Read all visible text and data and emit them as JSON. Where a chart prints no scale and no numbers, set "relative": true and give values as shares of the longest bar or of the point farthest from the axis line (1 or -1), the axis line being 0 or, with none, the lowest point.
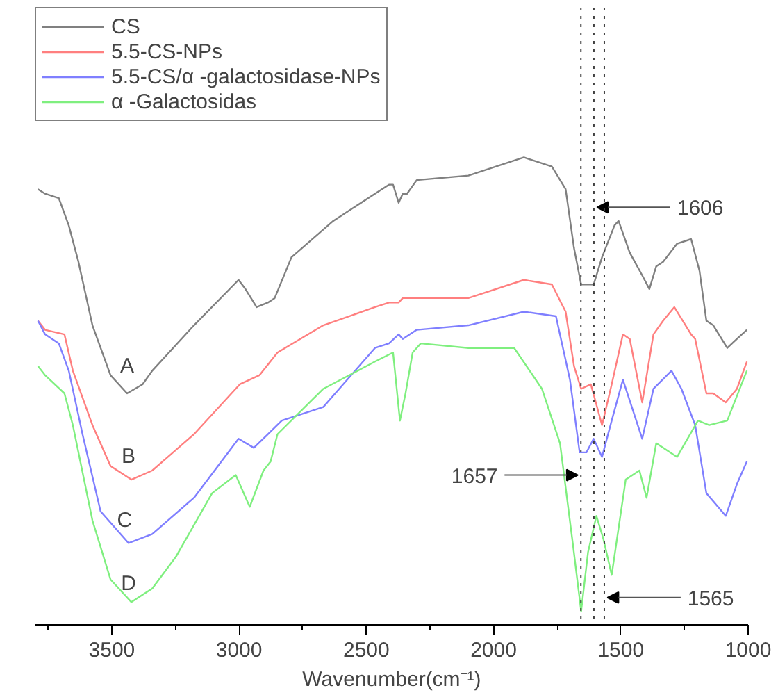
{
  "chart_data": {
    "type": "line",
    "relative": true,
    "xlabel": "Wavenumber(cm⁻¹)",
    "xlim": [
      3800,
      1000
    ],
    "xticks": [
      {
        "value": 3750,
        "label": null
      },
      3500,
      {
        "value": 3250,
        "label": null
      },
      3000,
      {
        "value": 2750,
        "label": null
      },
      2500,
      {
        "value": 2250,
        "label": null
      },
      2000,
      {
        "value": 1750,
        "label": null
      },
      1500,
      {
        "value": 1250,
        "label": null
      },
      1000
    ],
    "grid": false,
    "legend": "top left",
    "line_style": "solid",
    "marker": "none",
    "series": [
      {
        "name": "CS",
        "color": "#808080",
        "x": [
          3790,
          3762,
          3708,
          3669,
          3631,
          3576,
          3505,
          3440,
          3379,
          3341,
          3177,
          3002,
          2975,
          2931,
          2887,
          2860,
          2794,
          2630,
          2466,
          2411,
          2395,
          2373,
          2357,
          2340,
          2302,
          2099,
          1881,
          1771,
          1717,
          1684,
          1656,
          1607,
          1574,
          1525,
          1509,
          1465,
          1416,
          1388,
          1361,
          1334,
          1279,
          1224,
          1191,
          1164,
          1137,
          1082,
          1044,
          1005
        ],
        "values": [
          0.93,
          0.92,
          0.91,
          0.85,
          0.77,
          0.63,
          0.52,
          0.48,
          0.5,
          0.53,
          0.63,
          0.73,
          0.71,
          0.67,
          0.68,
          0.69,
          0.78,
          0.86,
          0.92,
          0.94,
          0.94,
          0.9,
          0.92,
          0.92,
          0.95,
          0.96,
          1.0,
          0.98,
          0.93,
          0.8,
          0.72,
          0.72,
          0.78,
          0.85,
          0.86,
          0.79,
          0.74,
          0.71,
          0.76,
          0.77,
          0.81,
          0.82,
          0.75,
          0.64,
          0.63,
          0.58,
          0.6,
          0.62
        ]
      },
      {
        "name": "5.5-CS-NPs",
        "color": "#ff7f7f",
        "x": [
          3790,
          3762,
          3686,
          3653,
          3576,
          3505,
          3423,
          3341,
          3177,
          2997,
          2920,
          2849,
          2669,
          2466,
          2411,
          2373,
          2357,
          2302,
          2099,
          1881,
          1771,
          1717,
          1684,
          1656,
          1618,
          1574,
          1536,
          1492,
          1465,
          1416,
          1372,
          1334,
          1290,
          1224,
          1208,
          1164,
          1137,
          1088,
          1044,
          1005
        ],
        "values": [
          0.64,
          0.62,
          0.61,
          0.53,
          0.41,
          0.32,
          0.29,
          0.31,
          0.39,
          0.5,
          0.52,
          0.57,
          0.63,
          0.67,
          0.68,
          0.68,
          0.69,
          0.69,
          0.69,
          0.73,
          0.72,
          0.66,
          0.54,
          0.49,
          0.5,
          0.41,
          0.5,
          0.61,
          0.6,
          0.46,
          0.61,
          0.64,
          0.67,
          0.61,
          0.6,
          0.48,
          0.48,
          0.46,
          0.49,
          0.55
        ]
      },
      {
        "name": "5.5-CS/α -galactosidase-NPs",
        "color": "#7f7fff",
        "x": [
          3790,
          3762,
          3708,
          3669,
          3615,
          3544,
          3434,
          3341,
          3177,
          3002,
          2942,
          2887,
          2832,
          2669,
          2466,
          2411,
          2373,
          2357,
          2302,
          2099,
          1881,
          1755,
          1700,
          1662,
          1635,
          1607,
          1574,
          1536,
          1492,
          1416,
          1372,
          1301,
          1262,
          1208,
          1164,
          1088,
          1044,
          1005
        ],
        "values": [
          0.64,
          0.61,
          0.59,
          0.53,
          0.39,
          0.22,
          0.15,
          0.17,
          0.25,
          0.38,
          0.36,
          0.39,
          0.42,
          0.45,
          0.58,
          0.59,
          0.61,
          0.6,
          0.62,
          0.63,
          0.66,
          0.65,
          0.51,
          0.35,
          0.35,
          0.38,
          0.34,
          0.42,
          0.51,
          0.38,
          0.49,
          0.53,
          0.49,
          0.41,
          0.26,
          0.21,
          0.28,
          0.33
        ]
      },
      {
        "name": "α -Galactosidas",
        "color": "#7fef7f",
        "x": [
          3790,
          3762,
          3686,
          3653,
          3576,
          3505,
          3423,
          3341,
          3248,
          3106,
          3013,
          2958,
          2904,
          2876,
          2849,
          2669,
          2466,
          2395,
          2368,
          2346,
          2318,
          2286,
          2099,
          1919,
          1810,
          1739,
          1689,
          1656,
          1629,
          1596,
          1569,
          1536,
          1481,
          1427,
          1399,
          1361,
          1279,
          1197,
          1153,
          1082,
          1005
        ],
        "values": [
          0.54,
          0.52,
          0.48,
          0.41,
          0.2,
          0.07,
          0.02,
          0.05,
          0.12,
          0.26,
          0.3,
          0.23,
          0.31,
          0.33,
          0.39,
          0.49,
          0.55,
          0.57,
          0.42,
          0.48,
          0.57,
          0.59,
          0.58,
          0.58,
          0.49,
          0.37,
          0.15,
          0.0,
          0.13,
          0.21,
          0.16,
          0.08,
          0.29,
          0.31,
          0.25,
          0.37,
          0.34,
          0.42,
          0.41,
          0.42,
          0.53
        ]
      }
    ],
    "ref_lines": [
      {
        "axis": "x",
        "value": 1657,
        "label": "1657",
        "color": "#404040",
        "line_style": "dotted"
      },
      {
        "axis": "x",
        "value": 1606,
        "label": "1606",
        "color": "#404040",
        "line_style": "dotted"
      },
      {
        "axis": "x",
        "value": 1565,
        "label": "1565",
        "color": "#404040",
        "line_style": "dotted"
      }
    ],
    "annotations": [
      "A",
      "B",
      "C",
      "D"
    ]
  }
}
